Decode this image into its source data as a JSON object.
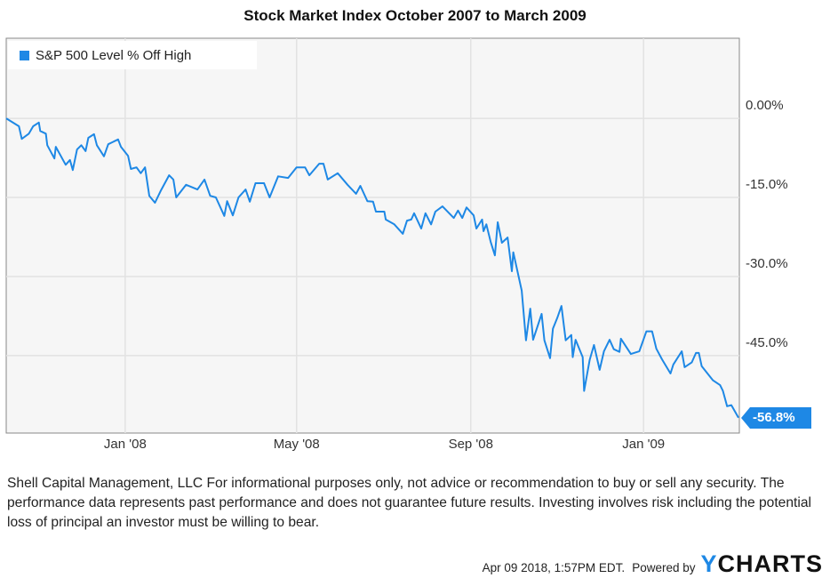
{
  "chart_data": {
    "type": "line",
    "title": "Stock Market Index October 2007 to March 2009",
    "xlabel": "",
    "ylabel": "",
    "xlim": [
      "2007-10-09",
      "2009-03-09"
    ],
    "ylim": [
      -59.7,
      15.2
    ],
    "grid": true,
    "legend_position": "top-left",
    "x_ticks": [
      {
        "date": "2008-01-01",
        "label": "Jan '08"
      },
      {
        "date": "2008-05-01",
        "label": "May '08"
      },
      {
        "date": "2008-09-01",
        "label": "Sep '08"
      },
      {
        "date": "2009-01-01",
        "label": "Jan '09"
      }
    ],
    "y_ticks": [
      {
        "value": 0,
        "label": "0.00%"
      },
      {
        "value": -15,
        "label": "-15.0%"
      },
      {
        "value": -30,
        "label": "-30.0%"
      },
      {
        "value": -45,
        "label": "-45.0%"
      }
    ],
    "series": [
      {
        "name": "S&P 500 Level % Off High",
        "color": "#1e88e5",
        "last_value_label": "-56.8%",
        "points": [
          [
            "2007-10-09",
            0.0
          ],
          [
            "2007-10-18",
            -1.5
          ],
          [
            "2007-10-20",
            -3.9
          ],
          [
            "2007-10-25",
            -2.9
          ],
          [
            "2007-10-28",
            -1.5
          ],
          [
            "2007-11-01",
            -0.8
          ],
          [
            "2007-11-02",
            -2.4
          ],
          [
            "2007-11-06",
            -2.9
          ],
          [
            "2007-11-07",
            -5.1
          ],
          [
            "2007-11-12",
            -7.6
          ],
          [
            "2007-11-13",
            -5.4
          ],
          [
            "2007-11-20",
            -8.8
          ],
          [
            "2007-11-23",
            -7.9
          ],
          [
            "2007-11-25",
            -9.8
          ],
          [
            "2007-11-28",
            -5.9
          ],
          [
            "2007-12-01",
            -5.1
          ],
          [
            "2007-12-04",
            -6.2
          ],
          [
            "2007-12-06",
            -3.7
          ],
          [
            "2007-12-10",
            -3.0
          ],
          [
            "2007-12-12",
            -5.1
          ],
          [
            "2007-12-17",
            -7.2
          ],
          [
            "2007-12-20",
            -4.9
          ],
          [
            "2007-12-27",
            -4.0
          ],
          [
            "2007-12-29",
            -5.4
          ],
          [
            "2008-01-03",
            -7.1
          ],
          [
            "2008-01-05",
            -9.6
          ],
          [
            "2008-01-09",
            -9.3
          ],
          [
            "2008-01-12",
            -10.4
          ],
          [
            "2008-01-15",
            -9.3
          ],
          [
            "2008-01-18",
            -14.7
          ],
          [
            "2008-01-22",
            -16.0
          ],
          [
            "2008-01-26",
            -13.8
          ],
          [
            "2008-02-01",
            -10.8
          ],
          [
            "2008-02-04",
            -11.6
          ],
          [
            "2008-02-06",
            -15.0
          ],
          [
            "2008-02-13",
            -12.6
          ],
          [
            "2008-02-21",
            -13.5
          ],
          [
            "2008-02-26",
            -11.6
          ],
          [
            "2008-03-01",
            -14.7
          ],
          [
            "2008-03-05",
            -15.0
          ],
          [
            "2008-03-11",
            -18.5
          ],
          [
            "2008-03-13",
            -15.7
          ],
          [
            "2008-03-17",
            -18.4
          ],
          [
            "2008-03-21",
            -15.0
          ],
          [
            "2008-03-26",
            -13.5
          ],
          [
            "2008-03-29",
            -15.8
          ],
          [
            "2008-04-02",
            -12.3
          ],
          [
            "2008-04-08",
            -12.3
          ],
          [
            "2008-04-12",
            -15.0
          ],
          [
            "2008-04-18",
            -11.0
          ],
          [
            "2008-04-25",
            -11.3
          ],
          [
            "2008-05-01",
            -9.3
          ],
          [
            "2008-05-07",
            -9.3
          ],
          [
            "2008-05-10",
            -10.8
          ],
          [
            "2008-05-17",
            -8.6
          ],
          [
            "2008-05-20",
            -8.6
          ],
          [
            "2008-05-23",
            -11.6
          ],
          [
            "2008-05-30",
            -10.4
          ],
          [
            "2008-06-06",
            -12.6
          ],
          [
            "2008-06-12",
            -14.3
          ],
          [
            "2008-06-15",
            -12.8
          ],
          [
            "2008-06-20",
            -15.7
          ],
          [
            "2008-06-24",
            -15.8
          ],
          [
            "2008-06-26",
            -17.7
          ],
          [
            "2008-07-02",
            -17.7
          ],
          [
            "2008-07-03",
            -19.2
          ],
          [
            "2008-07-09",
            -20.1
          ],
          [
            "2008-07-15",
            -21.9
          ],
          [
            "2008-07-18",
            -19.4
          ],
          [
            "2008-07-21",
            -19.2
          ],
          [
            "2008-07-23",
            -18.0
          ],
          [
            "2008-07-28",
            -20.9
          ],
          [
            "2008-07-31",
            -18.0
          ],
          [
            "2008-08-04",
            -20.1
          ],
          [
            "2008-08-07",
            -17.7
          ],
          [
            "2008-08-12",
            -16.7
          ],
          [
            "2008-08-20",
            -18.9
          ],
          [
            "2008-08-23",
            -17.5
          ],
          [
            "2008-08-26",
            -18.9
          ],
          [
            "2008-08-29",
            -16.9
          ],
          [
            "2008-09-03",
            -18.4
          ],
          [
            "2008-09-05",
            -20.9
          ],
          [
            "2008-09-09",
            -19.2
          ],
          [
            "2008-09-10",
            -21.4
          ],
          [
            "2008-09-12",
            -20.1
          ],
          [
            "2008-09-15",
            -23.4
          ],
          [
            "2008-09-18",
            -26.0
          ],
          [
            "2008-09-20",
            -19.7
          ],
          [
            "2008-09-23",
            -23.6
          ],
          [
            "2008-09-27",
            -22.6
          ],
          [
            "2008-09-30",
            -29.0
          ],
          [
            "2008-10-01",
            -25.4
          ],
          [
            "2008-10-07",
            -32.7
          ],
          [
            "2008-10-10",
            -42.1
          ],
          [
            "2008-10-13",
            -36.1
          ],
          [
            "2008-10-15",
            -42.0
          ],
          [
            "2008-10-21",
            -37.1
          ],
          [
            "2008-10-23",
            -42.1
          ],
          [
            "2008-10-27",
            -45.5
          ],
          [
            "2008-10-29",
            -39.9
          ],
          [
            "2008-11-01",
            -37.9
          ],
          [
            "2008-11-04",
            -35.6
          ],
          [
            "2008-11-07",
            -42.1
          ],
          [
            "2008-11-11",
            -41.1
          ],
          [
            "2008-11-12",
            -45.3
          ],
          [
            "2008-11-14",
            -42.0
          ],
          [
            "2008-11-19",
            -45.3
          ],
          [
            "2008-11-20",
            -51.7
          ],
          [
            "2008-11-24",
            -45.8
          ],
          [
            "2008-11-27",
            -43.0
          ],
          [
            "2008-12-01",
            -47.7
          ],
          [
            "2008-12-04",
            -44.2
          ],
          [
            "2008-12-08",
            -42.0
          ],
          [
            "2008-12-11",
            -43.8
          ],
          [
            "2008-12-15",
            -44.3
          ],
          [
            "2008-12-16",
            -41.8
          ],
          [
            "2008-12-23",
            -44.7
          ],
          [
            "2008-12-29",
            -44.2
          ],
          [
            "2009-01-03",
            -40.4
          ],
          [
            "2009-01-07",
            -40.4
          ],
          [
            "2009-01-10",
            -43.7
          ],
          [
            "2009-01-14",
            -45.7
          ],
          [
            "2009-01-20",
            -48.4
          ],
          [
            "2009-01-22",
            -46.7
          ],
          [
            "2009-01-28",
            -44.2
          ],
          [
            "2009-01-30",
            -47.2
          ],
          [
            "2009-02-04",
            -46.3
          ],
          [
            "2009-02-07",
            -44.5
          ],
          [
            "2009-02-09",
            -44.5
          ],
          [
            "2009-02-11",
            -47.0
          ],
          [
            "2009-02-19",
            -49.7
          ],
          [
            "2009-02-24",
            -50.6
          ],
          [
            "2009-02-26",
            -51.7
          ],
          [
            "2009-03-01",
            -54.6
          ],
          [
            "2009-03-04",
            -54.4
          ],
          [
            "2009-03-09",
            -56.8
          ]
        ]
      }
    ]
  },
  "legend": {
    "label": "S&P 500 Level % Off High"
  },
  "disclaimer": "Shell Capital Management, LLC For informational purposes only, not advice or recommendation to buy or sell any security. The performance data represents past performance and does not guarantee future results. Investing involves risk including the potential loss of principal an investor must be willing to bear.",
  "footer": {
    "timestamp": "Apr 09 2018, 1:57PM EDT.",
    "powered_by": "Powered by",
    "logo_text": "YCHARTS"
  }
}
